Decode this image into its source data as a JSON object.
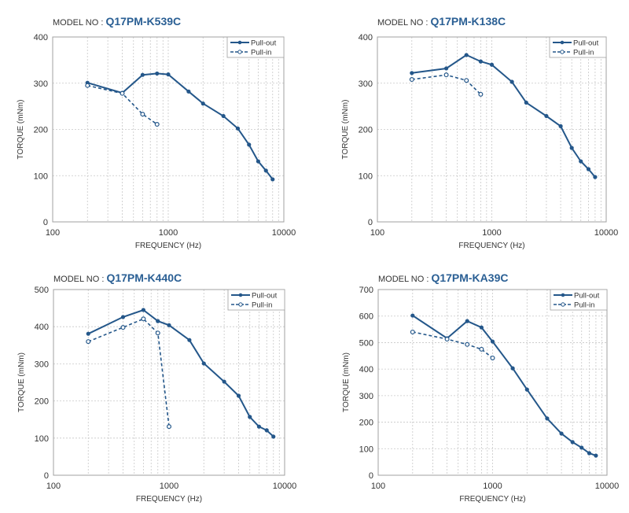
{
  "model_prefix": "MODEL NO :",
  "chart_data": [
    {
      "type": "line",
      "model": "Q17PM-K539C",
      "xlabel": "FREQUENCY (Hz)",
      "ylabel": "TORQUE (mNm)",
      "xscale": "log",
      "xlim": [
        100,
        10000
      ],
      "ylim": [
        0,
        400
      ],
      "xticks": [
        "100",
        "1000",
        "10000"
      ],
      "yticks": [
        "0",
        "100",
        "200",
        "300",
        "400"
      ],
      "ytick_values": [
        0,
        100,
        200,
        300,
        400
      ],
      "grid": true,
      "legend": "top-right",
      "series": [
        {
          "name": "Pull-out",
          "style": "solid",
          "marker": "filled",
          "x": [
            200,
            400,
            600,
            800,
            1000,
            1500,
            2000,
            3000,
            4000,
            5000,
            6000,
            7000,
            8000
          ],
          "y": [
            301,
            279,
            318,
            321,
            319,
            282,
            256,
            229,
            202,
            167,
            131,
            111,
            92
          ]
        },
        {
          "name": "Pull-in",
          "style": "dashed",
          "marker": "open",
          "x": [
            200,
            400,
            600,
            800
          ],
          "y": [
            295,
            278,
            233,
            211
          ]
        }
      ]
    },
    {
      "type": "line",
      "model": "Q17PM-K138C",
      "xlabel": "FREQUENCY (Hz)",
      "ylabel": "TORQUE (mNm)",
      "xscale": "log",
      "xlim": [
        100,
        10000
      ],
      "ylim": [
        0,
        400
      ],
      "xticks": [
        "100",
        "1000",
        "10000"
      ],
      "yticks": [
        "0",
        "100",
        "200",
        "300",
        "400"
      ],
      "ytick_values": [
        0,
        100,
        200,
        300,
        400
      ],
      "grid": true,
      "legend": "top-right",
      "series": [
        {
          "name": "Pull-out",
          "style": "solid",
          "marker": "filled",
          "x": [
            200,
            400,
            600,
            800,
            1000,
            1500,
            2000,
            3000,
            4000,
            5000,
            6000,
            7000,
            8000
          ],
          "y": [
            322,
            332,
            361,
            347,
            340,
            303,
            258,
            229,
            207,
            160,
            131,
            114,
            97
          ]
        },
        {
          "name": "Pull-in",
          "style": "dashed",
          "marker": "open",
          "x": [
            200,
            400,
            600,
            800
          ],
          "y": [
            308,
            318,
            306,
            276
          ]
        }
      ]
    },
    {
      "type": "line",
      "model": "Q17PM-K440C",
      "xlabel": "FREQUENCY (Hz)",
      "ylabel": "TORQUE (mNm)",
      "xscale": "log",
      "xlim": [
        100,
        10000
      ],
      "ylim": [
        0,
        500
      ],
      "xticks": [
        "100",
        "1000",
        "10000"
      ],
      "yticks": [
        "0",
        "100",
        "200",
        "300",
        "400",
        "500"
      ],
      "ytick_values": [
        0,
        100,
        200,
        300,
        400,
        500
      ],
      "grid": true,
      "legend": "top-right",
      "series": [
        {
          "name": "Pull-out",
          "style": "solid",
          "marker": "filled",
          "x": [
            200,
            400,
            600,
            800,
            1000,
            1500,
            2000,
            3000,
            4000,
            5000,
            6000,
            7000,
            8000
          ],
          "y": [
            381,
            426,
            445,
            415,
            404,
            364,
            301,
            252,
            214,
            157,
            131,
            121,
            104
          ]
        },
        {
          "name": "Pull-in",
          "style": "dashed",
          "marker": "open",
          "x": [
            200,
            400,
            600,
            800,
            1000
          ],
          "y": [
            360,
            398,
            421,
            383,
            131
          ]
        }
      ]
    },
    {
      "type": "line",
      "model": "Q17PM-KA39C",
      "xlabel": "FREQUENCY (Hz)",
      "ylabel": "TORQUE (mNm)",
      "xscale": "log",
      "xlim": [
        100,
        10000
      ],
      "ylim": [
        0,
        700
      ],
      "xticks": [
        "100",
        "1000",
        "10000"
      ],
      "yticks": [
        "0",
        "100",
        "200",
        "300",
        "400",
        "500",
        "600",
        "700"
      ],
      "ytick_values": [
        0,
        100,
        200,
        300,
        400,
        500,
        600,
        700
      ],
      "grid": true,
      "legend": "top-right",
      "series": [
        {
          "name": "Pull-out",
          "style": "solid",
          "marker": "filled",
          "x": [
            200,
            400,
            600,
            800,
            1000,
            1500,
            2000,
            3000,
            4000,
            5000,
            6000,
            7000,
            8000
          ],
          "y": [
            602,
            516,
            581,
            557,
            504,
            403,
            323,
            214,
            157,
            125,
            104,
            83,
            74
          ]
        },
        {
          "name": "Pull-in",
          "style": "dashed",
          "marker": "open",
          "x": [
            200,
            400,
            600,
            800,
            1000
          ],
          "y": [
            540,
            513,
            493,
            475,
            442
          ]
        }
      ]
    }
  ],
  "colors": {
    "line": "#24578a",
    "grid": "#c8c8c8",
    "axis": "#a0a0a0",
    "model_value": "#2a5f94"
  }
}
